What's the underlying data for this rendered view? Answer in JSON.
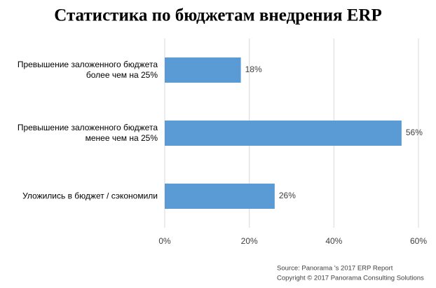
{
  "chart_data": {
    "type": "bar",
    "orientation": "horizontal",
    "title": "Статистика по бюджетам внедрения ERP",
    "categories": [
      "Превышение заложенного бюджета\nболее чем на 25%",
      "Превышение заложенного бюджета\nменее чем на 25%",
      "Уложились в бюджет / сэкономили"
    ],
    "values": [
      18,
      56,
      26
    ],
    "value_labels": [
      "18%",
      "56%",
      "26%"
    ],
    "color": "#5b9bd5",
    "xlim": [
      0,
      60
    ],
    "xticks": [
      {
        "value": 0,
        "label": "0%"
      },
      {
        "value": 20,
        "label": "20%"
      },
      {
        "value": 40,
        "label": "40%"
      },
      {
        "value": 60,
        "label": "60%"
      }
    ],
    "grid": true,
    "source": [
      "Source: Panorama 's 2017 ERP Report",
      "Copyright © 2017 Panorama Consulting Solutions"
    ]
  }
}
